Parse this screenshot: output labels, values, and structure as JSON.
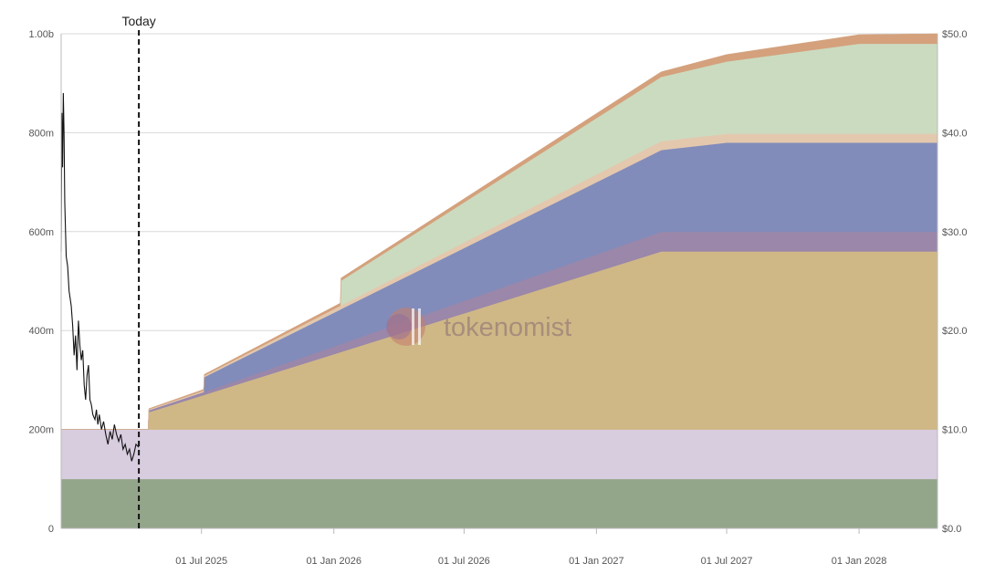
{
  "chart_data": {
    "type": "area",
    "today_label": "Today",
    "watermark": "tokenomist",
    "xlim": [
      "2024-12-18",
      "2028-04-19"
    ],
    "today": "2025-04-05",
    "x_ticks": [
      {
        "date": "2025-07-01",
        "label": "01 Jul 2025"
      },
      {
        "date": "2026-01-01",
        "label": "01 Jan 2026"
      },
      {
        "date": "2026-07-01",
        "label": "01 Jul 2026"
      },
      {
        "date": "2027-01-01",
        "label": "01 Jan 2027"
      },
      {
        "date": "2027-07-01",
        "label": "01 Jul 2027"
      },
      {
        "date": "2028-01-01",
        "label": "01 Jan 2028"
      }
    ],
    "y_left": {
      "lim": [
        0,
        1000000000
      ],
      "ticks": [
        {
          "value": 0,
          "label": "0"
        },
        {
          "value": 200000000,
          "label": "200m"
        },
        {
          "value": 400000000,
          "label": "400m"
        },
        {
          "value": 600000000,
          "label": "600m"
        },
        {
          "value": 800000000,
          "label": "800m"
        },
        {
          "value": 1000000000,
          "label": "1.00b"
        }
      ]
    },
    "y_right": {
      "lim": [
        0,
        50
      ],
      "ticks": [
        {
          "value": 0,
          "label": "$0.0"
        },
        {
          "value": 10,
          "label": "$10.0"
        },
        {
          "value": 20,
          "label": "$20.0"
        },
        {
          "value": 30,
          "label": "$30.0"
        },
        {
          "value": 40,
          "label": "$40.0"
        },
        {
          "value": 50,
          "label": "$50.0"
        }
      ]
    },
    "grid": true,
    "series": [
      {
        "color": "#93a68a",
        "points": [
          [
            "2024-12-18",
            100000000
          ],
          [
            "2028-04-19",
            100000000
          ]
        ]
      },
      {
        "color": "#d8ccdf",
        "points": [
          [
            "2024-12-18",
            100000000
          ],
          [
            "2028-04-19",
            100000000
          ]
        ]
      },
      {
        "color": "#cfb886",
        "points": [
          [
            "2024-12-18",
            0
          ],
          [
            "2025-04-18",
            0
          ],
          [
            "2025-04-19",
            35000000
          ],
          [
            "2027-04-01",
            360000000
          ],
          [
            "2028-04-19",
            360000000
          ]
        ]
      },
      {
        "color": "#9a87a9",
        "points": [
          [
            "2024-12-18",
            0
          ],
          [
            "2025-04-18",
            0
          ],
          [
            "2025-04-19",
            4000000
          ],
          [
            "2025-07-05",
            6000000
          ],
          [
            "2027-04-01",
            40000000
          ],
          [
            "2028-04-19",
            40000000
          ]
        ]
      },
      {
        "color": "#818cbb",
        "points": [
          [
            "2024-12-18",
            0
          ],
          [
            "2025-07-04",
            0
          ],
          [
            "2025-07-05",
            30000000
          ],
          [
            "2027-04-01",
            165000000
          ],
          [
            "2027-07-01",
            180000000
          ],
          [
            "2028-04-19",
            180000000
          ]
        ]
      },
      {
        "color": "#e3c8ae",
        "points": [
          [
            "2024-12-18",
            0
          ],
          [
            "2025-04-18",
            0
          ],
          [
            "2025-04-19",
            2000000
          ],
          [
            "2025-07-05",
            3000000
          ],
          [
            "2027-04-01",
            18000000
          ],
          [
            "2027-07-01",
            18000000
          ],
          [
            "2028-04-19",
            18000000
          ]
        ]
      },
      {
        "color": "#cbdbc0",
        "points": [
          [
            "2024-12-18",
            0
          ],
          [
            "2026-01-10",
            0
          ],
          [
            "2026-01-11",
            50000000
          ],
          [
            "2027-04-01",
            130000000
          ],
          [
            "2027-07-01",
            146000000
          ],
          [
            "2028-01-01",
            182000000
          ],
          [
            "2028-04-19",
            182000000
          ]
        ]
      },
      {
        "color": "#d4a17c",
        "points": [
          [
            "2024-12-18",
            0
          ],
          [
            "2025-04-18",
            0
          ],
          [
            "2025-04-19",
            1000000
          ],
          [
            "2026-01-11",
            5000000
          ],
          [
            "2027-04-01",
            10000000
          ],
          [
            "2027-07-01",
            14000000
          ],
          [
            "2028-01-01",
            18000000
          ],
          [
            "2028-04-19",
            20000000
          ]
        ]
      }
    ],
    "price_line": {
      "color": "#111111",
      "y_axis": "right",
      "points": [
        [
          "2024-12-18",
          28.0
        ],
        [
          "2024-12-19",
          42.0
        ],
        [
          "2024-12-20",
          36.5
        ],
        [
          "2024-12-21",
          44.0
        ],
        [
          "2024-12-22",
          40.0
        ],
        [
          "2024-12-23",
          33.0
        ],
        [
          "2024-12-25",
          27.5
        ],
        [
          "2024-12-27",
          26.5
        ],
        [
          "2024-12-29",
          24.0
        ],
        [
          "2025-01-01",
          22.5
        ],
        [
          "2025-01-03",
          20.5
        ],
        [
          "2025-01-05",
          17.5
        ],
        [
          "2025-01-07",
          19.5
        ],
        [
          "2025-01-09",
          16.0
        ],
        [
          "2025-01-11",
          21.0
        ],
        [
          "2025-01-13",
          18.5
        ],
        [
          "2025-01-15",
          17.0
        ],
        [
          "2025-01-17",
          18.0
        ],
        [
          "2025-01-19",
          14.5
        ],
        [
          "2025-01-21",
          13.0
        ],
        [
          "2025-01-23",
          15.5
        ],
        [
          "2025-01-25",
          16.5
        ],
        [
          "2025-01-27",
          13.0
        ],
        [
          "2025-01-29",
          12.5
        ],
        [
          "2025-01-31",
          11.5
        ],
        [
          "2025-02-03",
          11.0
        ],
        [
          "2025-02-05",
          12.0
        ],
        [
          "2025-02-07",
          10.5
        ],
        [
          "2025-02-09",
          11.5
        ],
        [
          "2025-02-12",
          10.0
        ],
        [
          "2025-02-15",
          10.8
        ],
        [
          "2025-02-18",
          9.5
        ],
        [
          "2025-02-21",
          8.5
        ],
        [
          "2025-02-24",
          9.8
        ],
        [
          "2025-02-27",
          9.0
        ],
        [
          "2025-03-02",
          10.5
        ],
        [
          "2025-03-05",
          9.5
        ],
        [
          "2025-03-08",
          8.8
        ],
        [
          "2025-03-11",
          9.5
        ],
        [
          "2025-03-14",
          8.0
        ],
        [
          "2025-03-17",
          8.5
        ],
        [
          "2025-03-20",
          7.5
        ],
        [
          "2025-03-23",
          8.0
        ],
        [
          "2025-03-26",
          6.8
        ],
        [
          "2025-03-29",
          7.5
        ],
        [
          "2025-04-01",
          8.5
        ],
        [
          "2025-04-05",
          8.2
        ]
      ]
    }
  }
}
